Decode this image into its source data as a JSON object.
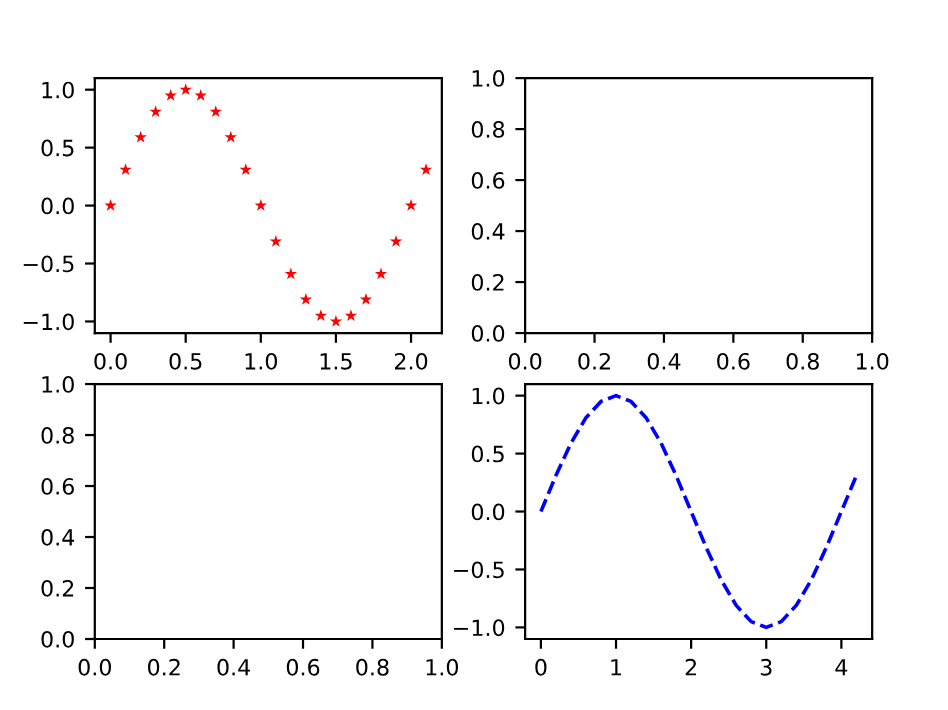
{
  "chart_data": [
    {
      "type": "scatter",
      "x": [
        0,
        0.1,
        0.2,
        0.3,
        0.4,
        0.5,
        0.6,
        0.7,
        0.8,
        0.9,
        1.0,
        1.1,
        1.2,
        1.3,
        1.4,
        1.5,
        1.6,
        1.7,
        1.8,
        1.9,
        2.0,
        2.1
      ],
      "series": [
        {
          "color": "#ff0000",
          "marker": "star",
          "values": [
            0,
            0.31,
            0.59,
            0.81,
            0.95,
            1,
            0.95,
            0.81,
            0.59,
            0.31,
            0,
            -0.31,
            -0.59,
            -0.81,
            -0.95,
            -1,
            -0.95,
            -0.81,
            -0.59,
            -0.31,
            0,
            0.31
          ]
        }
      ],
      "xlim": [
        -0.105,
        2.205
      ],
      "ylim": [
        -1.1,
        1.1
      ],
      "xticks": [
        {
          "value": 0,
          "label": "0.0"
        },
        {
          "value": 0.5,
          "label": "0.5"
        },
        {
          "value": 1,
          "label": "1.0"
        },
        {
          "value": 1.5,
          "label": "1.5"
        },
        {
          "value": 2,
          "label": "2.0"
        }
      ],
      "yticks": [
        {
          "value": -1,
          "label": "−1.0"
        },
        {
          "value": -0.5,
          "label": "−0.5"
        },
        {
          "value": 0,
          "label": "0.0"
        },
        {
          "value": 0.5,
          "label": "0.5"
        },
        {
          "value": 1,
          "label": "1.0"
        }
      ]
    },
    {
      "type": "line",
      "xlim": [
        0,
        1
      ],
      "ylim": [
        0,
        1
      ],
      "xticks": [
        {
          "value": 0,
          "label": "0.0"
        },
        {
          "value": 0.2,
          "label": "0.2"
        },
        {
          "value": 0.4,
          "label": "0.4"
        },
        {
          "value": 0.6,
          "label": "0.6"
        },
        {
          "value": 0.8,
          "label": "0.8"
        },
        {
          "value": 1,
          "label": "1.0"
        }
      ],
      "yticks": [
        {
          "value": 0,
          "label": "0.0"
        },
        {
          "value": 0.2,
          "label": "0.2"
        },
        {
          "value": 0.4,
          "label": "0.4"
        },
        {
          "value": 0.6,
          "label": "0.6"
        },
        {
          "value": 0.8,
          "label": "0.8"
        },
        {
          "value": 1,
          "label": "1.0"
        }
      ]
    },
    {
      "type": "line",
      "xlim": [
        0,
        1
      ],
      "ylim": [
        0,
        1
      ],
      "xticks": [
        {
          "value": 0,
          "label": "0.0"
        },
        {
          "value": 0.2,
          "label": "0.2"
        },
        {
          "value": 0.4,
          "label": "0.4"
        },
        {
          "value": 0.6,
          "label": "0.6"
        },
        {
          "value": 0.8,
          "label": "0.8"
        },
        {
          "value": 1,
          "label": "1.0"
        }
      ],
      "yticks": [
        {
          "value": 0,
          "label": "0.0"
        },
        {
          "value": 0.2,
          "label": "0.2"
        },
        {
          "value": 0.4,
          "label": "0.4"
        },
        {
          "value": 0.6,
          "label": "0.6"
        },
        {
          "value": 0.8,
          "label": "0.8"
        },
        {
          "value": 1,
          "label": "1.0"
        }
      ]
    },
    {
      "type": "line",
      "x": [
        0,
        0.2,
        0.4,
        0.6,
        0.8,
        1.0,
        1.2,
        1.4,
        1.6,
        1.8,
        2.0,
        2.2,
        2.4,
        2.6,
        2.8,
        3.0,
        3.2,
        3.4,
        3.6,
        3.8,
        4.0,
        4.2
      ],
      "series": [
        {
          "color": "#0000ff",
          "line_style": "dashed",
          "values": [
            0,
            0.31,
            0.59,
            0.81,
            0.95,
            1,
            0.95,
            0.81,
            0.59,
            0.31,
            0,
            -0.31,
            -0.59,
            -0.81,
            -0.95,
            -1,
            -0.95,
            -0.81,
            -0.59,
            -0.31,
            0,
            0.31
          ]
        }
      ],
      "xlim": [
        -0.21,
        4.41
      ],
      "ylim": [
        -1.1,
        1.1
      ],
      "xticks": [
        0,
        1,
        2,
        3,
        4
      ],
      "yticks": [
        {
          "value": -1,
          "label": "−1.0"
        },
        {
          "value": -0.5,
          "label": "−0.5"
        },
        {
          "value": 0,
          "label": "0.0"
        },
        {
          "value": 0.5,
          "label": "0.5"
        },
        {
          "value": 1,
          "label": "1.0"
        }
      ]
    }
  ]
}
